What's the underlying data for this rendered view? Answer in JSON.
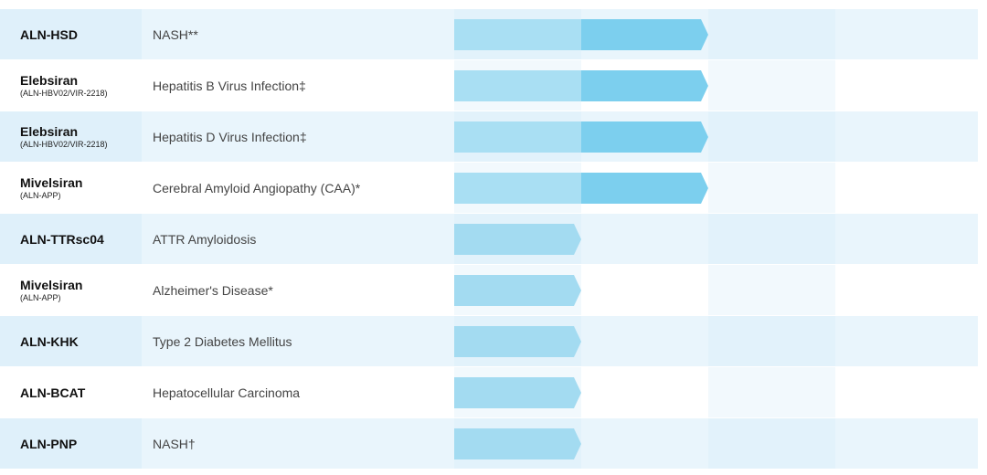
{
  "table": {
    "rows": [
      {
        "name": "ALN-HSD",
        "sub": null,
        "indication": "NASH**",
        "stage": 2
      },
      {
        "name": "Elebsiran",
        "sub": "(ALN-HBV02/VIR-2218)",
        "indication": "Hepatitis B Virus Infection‡",
        "stage": 2
      },
      {
        "name": "Elebsiran",
        "sub": "(ALN-HBV02/VIR-2218)",
        "indication": "Hepatitis D Virus Infection‡",
        "stage": 2
      },
      {
        "name": "Mivelsiran",
        "sub": "(ALN-APP)",
        "indication": "Cerebral Amyloid Angiopathy (CAA)*",
        "stage": 2
      },
      {
        "name": "ALN-TTRsc04",
        "sub": null,
        "indication": "ATTR Amyloidosis",
        "stage": 1
      },
      {
        "name": "Mivelsiran",
        "sub": "(ALN-APP)",
        "indication": "Alzheimer's Disease*",
        "stage": 1
      },
      {
        "name": "ALN-KHK",
        "sub": null,
        "indication": "Type 2 Diabetes Mellitus",
        "stage": 1
      },
      {
        "name": "ALN-BCAT",
        "sub": null,
        "indication": "Hepatocellular Carcinoma",
        "stage": 1
      },
      {
        "name": "ALN-PNP",
        "sub": null,
        "indication": "NASH†",
        "stage": 1
      }
    ]
  }
}
